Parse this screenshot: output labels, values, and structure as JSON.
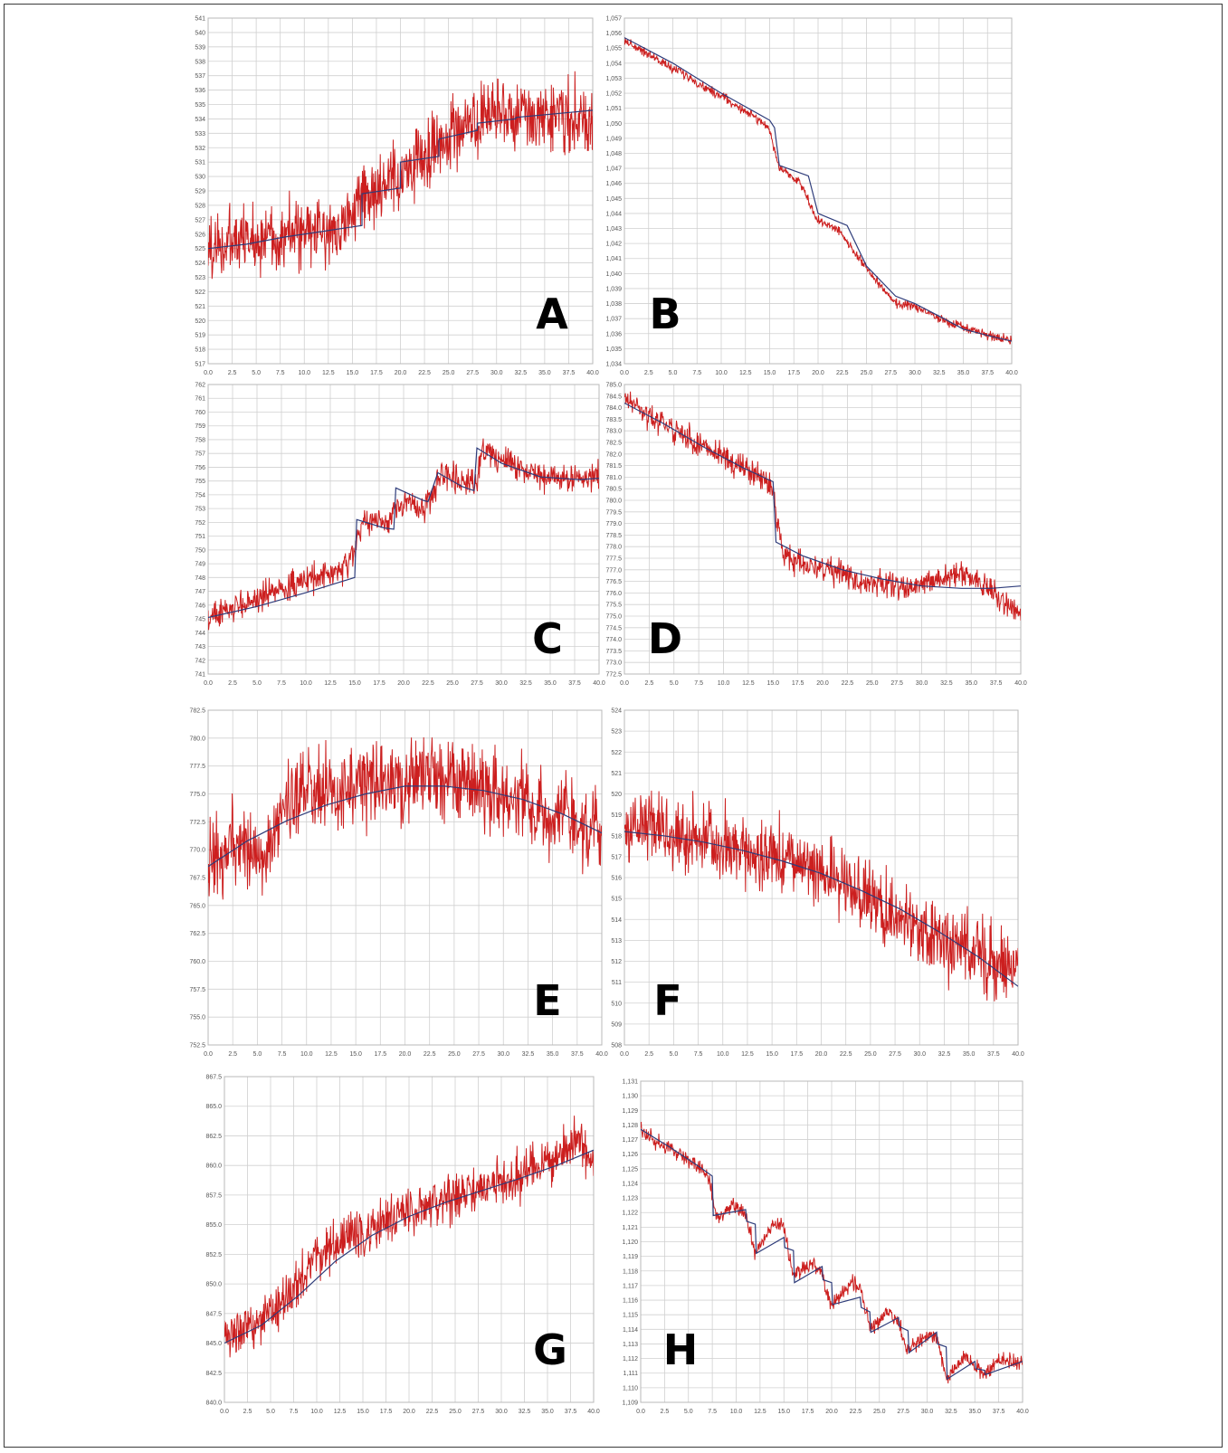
{
  "figure": {
    "panel_labels": [
      "A",
      "B",
      "C",
      "D",
      "E",
      "F",
      "G",
      "H"
    ]
  },
  "colors": {
    "signal": "#cc1f1f",
    "fit": "#2e3c7a",
    "grid": "#d0d0d0",
    "plot_border": "#b8b8b8"
  },
  "chart_data": [
    {
      "id": "A",
      "type": "line",
      "label": "A",
      "grid": true,
      "xlim": [
        0,
        40
      ],
      "ylim": [
        517,
        541
      ],
      "xticks": [
        "0.0",
        "2.5",
        "5.0",
        "7.5",
        "10.0",
        "12.5",
        "15.0",
        "17.5",
        "20.0",
        "22.5",
        "25.0",
        "27.5",
        "30.0",
        "32.5",
        "35.0",
        "37.5",
        "40.0"
      ],
      "yticks": [
        "517",
        "518",
        "519",
        "520",
        "521",
        "522",
        "523",
        "524",
        "525",
        "526",
        "527",
        "528",
        "529",
        "530",
        "531",
        "532",
        "533",
        "534",
        "535",
        "536",
        "537",
        "538",
        "539",
        "540",
        "541"
      ],
      "series": [
        {
          "role": "signal",
          "noise": 3.6,
          "x": [
            0,
            2,
            4,
            6,
            8,
            10,
            12,
            14,
            16,
            18,
            20,
            22,
            24,
            26,
            28,
            30,
            32,
            34,
            36,
            38,
            40
          ],
          "y": [
            525,
            525.3,
            525.6,
            525.8,
            526,
            526,
            526.2,
            526.6,
            528.5,
            529,
            529.8,
            531.2,
            532.3,
            533.4,
            533.5,
            534.2,
            534.2,
            534.3,
            534.6,
            534,
            533.5
          ]
        },
        {
          "role": "fit",
          "x": [
            0,
            4,
            8,
            12,
            16,
            16,
            20,
            20,
            24,
            24,
            28,
            28,
            32,
            32,
            40
          ],
          "y": [
            525,
            525.3,
            525.8,
            526.2,
            526.6,
            528.8,
            529.2,
            531,
            531.4,
            532.6,
            533.2,
            533.7,
            534,
            534.1,
            534.6
          ]
        }
      ]
    },
    {
      "id": "B",
      "type": "line",
      "label": "B",
      "grid": true,
      "xlim": [
        0,
        40
      ],
      "ylim": [
        1.034,
        1.057
      ],
      "xticks": [
        "0.0",
        "2.5",
        "5.0",
        "7.5",
        "10.0",
        "12.5",
        "15.0",
        "17.5",
        "20.0",
        "22.5",
        "25.0",
        "27.5",
        "30.0",
        "32.5",
        "35.0",
        "37.5",
        "40.0"
      ],
      "yticks": [
        "1,034",
        "1,035",
        "1,036",
        "1,037",
        "1,038",
        "1,039",
        "1,040",
        "1,041",
        "1,042",
        "1,043",
        "1,044",
        "1,045",
        "1,046",
        "1,047",
        "1,048",
        "1,049",
        "1,050",
        "1,051",
        "1,052",
        "1,053",
        "1,054",
        "1,055",
        "1,056",
        "1,057"
      ],
      "series": [
        {
          "role": "signal",
          "noise": 0.00045,
          "x": [
            0,
            2,
            4,
            6,
            8,
            10,
            12,
            14,
            15,
            16,
            18,
            20,
            22,
            24,
            26,
            28,
            30,
            32,
            34,
            36,
            38,
            40
          ],
          "y": [
            1.0555,
            1.0548,
            1.054,
            1.0533,
            1.0525,
            1.0518,
            1.051,
            1.0502,
            1.0495,
            1.047,
            1.0462,
            1.0435,
            1.043,
            1.0412,
            1.0395,
            1.038,
            1.0378,
            1.0372,
            1.0366,
            1.0362,
            1.0358,
            1.0355
          ]
        },
        {
          "role": "fit",
          "x": [
            0,
            5,
            10,
            15,
            15.5,
            16,
            19,
            20,
            23,
            25,
            28,
            30,
            33,
            35,
            38,
            40
          ],
          "y": [
            1.0557,
            1.054,
            1.052,
            1.0502,
            1.0497,
            1.0472,
            1.0465,
            1.044,
            1.0432,
            1.0405,
            1.0385,
            1.038,
            1.037,
            1.0363,
            1.0358,
            1.0355
          ]
        }
      ]
    },
    {
      "id": "C",
      "type": "line",
      "label": "C",
      "grid": true,
      "xlim": [
        0,
        40
      ],
      "ylim": [
        741,
        762
      ],
      "xticks": [
        "0.0",
        "2.5",
        "5.0",
        "7.5",
        "10.0",
        "12.5",
        "15.0",
        "17.5",
        "20.0",
        "22.5",
        "25.0",
        "27.5",
        "30.0",
        "32.5",
        "35.0",
        "37.5",
        "40.0"
      ],
      "yticks": [
        "741",
        "742",
        "743",
        "744",
        "745",
        "746",
        "747",
        "748",
        "749",
        "750",
        "751",
        "752",
        "753",
        "754",
        "755",
        "756",
        "757",
        "758",
        "759",
        "760",
        "761",
        "762"
      ],
      "series": [
        {
          "role": "signal",
          "noise": 1.5,
          "x": [
            0,
            2,
            4,
            6,
            8,
            10,
            12,
            14,
            15,
            16,
            18,
            20,
            22,
            24,
            26,
            27.5,
            28,
            30,
            32,
            34,
            36,
            38,
            40
          ],
          "y": [
            745,
            745.6,
            746.2,
            746.8,
            747.3,
            747.8,
            748.2,
            748.5,
            750,
            752.2,
            751.9,
            753.6,
            752.9,
            755.7,
            755,
            755,
            757.3,
            756.6,
            755.9,
            755.4,
            755.2,
            755.3,
            755.2
          ]
        },
        {
          "role": "fit",
          "x": [
            0,
            5,
            10,
            15,
            15.2,
            18,
            19,
            19.2,
            22,
            22.5,
            23.5,
            26,
            27.2,
            27.5,
            30,
            34,
            38,
            40
          ],
          "y": [
            745.1,
            745.9,
            746.9,
            748,
            752.2,
            751.6,
            751.5,
            754.5,
            753.6,
            753.5,
            755.6,
            754.6,
            754.3,
            757.4,
            756.3,
            755.3,
            755.1,
            755.2
          ]
        }
      ]
    },
    {
      "id": "D",
      "type": "line",
      "label": "D",
      "grid": true,
      "xlim": [
        0,
        40
      ],
      "ylim": [
        772.5,
        785.0
      ],
      "xticks": [
        "0.0",
        "2.5",
        "5.0",
        "7.5",
        "10.0",
        "12.5",
        "15.0",
        "17.5",
        "20.0",
        "22.5",
        "25.0",
        "27.5",
        "30.0",
        "32.5",
        "35.0",
        "37.5",
        "40.0"
      ],
      "yticks": [
        "772.5",
        "773.0",
        "773.5",
        "774.0",
        "774.5",
        "775.0",
        "775.5",
        "776.0",
        "776.5",
        "777.0",
        "777.5",
        "778.0",
        "778.5",
        "779.0",
        "779.5",
        "780.0",
        "780.5",
        "781.0",
        "781.5",
        "782.0",
        "782.5",
        "783.0",
        "783.5",
        "784.0",
        "784.5",
        "785.0"
      ],
      "series": [
        {
          "role": "signal",
          "noise": 0.8,
          "x": [
            0,
            2,
            4,
            6,
            8,
            10,
            12,
            14,
            15,
            16,
            18,
            20,
            22,
            24,
            26,
            28,
            30,
            32,
            34,
            36,
            38,
            40
          ],
          "y": [
            784.4,
            783.8,
            783.3,
            782.8,
            782.3,
            781.8,
            781.4,
            781,
            780.4,
            777.6,
            777.3,
            777,
            776.8,
            776.5,
            776.4,
            776.3,
            776.4,
            776.7,
            776.8,
            776.5,
            775.6,
            775.2
          ]
        },
        {
          "role": "fit",
          "x": [
            0,
            4,
            8,
            12,
            15,
            15.3,
            18,
            22,
            26,
            30,
            34,
            37,
            40
          ],
          "y": [
            784.2,
            783.3,
            782.3,
            781.4,
            780.8,
            778.2,
            777.6,
            777,
            776.6,
            776.3,
            776.2,
            776.2,
            776.3
          ]
        }
      ]
    },
    {
      "id": "E",
      "type": "line",
      "label": "E",
      "grid": true,
      "xlim": [
        0,
        40
      ],
      "ylim": [
        752.5,
        782.5
      ],
      "xticks": [
        "0.0",
        "2.5",
        "5.0",
        "7.5",
        "10.0",
        "12.5",
        "15.0",
        "17.5",
        "20.0",
        "22.5",
        "25.0",
        "27.5",
        "30.0",
        "32.5",
        "35.0",
        "37.5",
        "40.0"
      ],
      "yticks": [
        "752.5",
        "755.0",
        "757.5",
        "760.0",
        "762.5",
        "765.0",
        "767.5",
        "770.0",
        "772.5",
        "775.0",
        "777.5",
        "780.0",
        "782.5"
      ],
      "series": [
        {
          "role": "signal",
          "noise": 5.5,
          "x": [
            0,
            2,
            4,
            6,
            8,
            10,
            12,
            14,
            16,
            18,
            20,
            22,
            24,
            26,
            28,
            30,
            32,
            34,
            36,
            38,
            40
          ],
          "y": [
            768,
            770,
            770.5,
            769,
            774.5,
            774.8,
            775,
            775.6,
            776,
            775.6,
            775.7,
            776.2,
            776.6,
            776,
            775.4,
            775,
            774.2,
            773.5,
            773,
            772,
            771.5
          ]
        },
        {
          "role": "fit",
          "x": [
            0,
            4,
            8,
            12,
            16,
            20,
            24,
            28,
            32,
            36,
            40
          ],
          "y": [
            768.5,
            770.8,
            772.6,
            774,
            775,
            775.7,
            775.7,
            775.3,
            774.5,
            773.2,
            771.5
          ]
        }
      ]
    },
    {
      "id": "F",
      "type": "line",
      "label": "F",
      "grid": true,
      "xlim": [
        0,
        40
      ],
      "ylim": [
        508,
        524
      ],
      "xticks": [
        "0.0",
        "2.5",
        "5.0",
        "7.5",
        "10.0",
        "12.5",
        "15.0",
        "17.5",
        "20.0",
        "22.5",
        "25.0",
        "27.5",
        "30.0",
        "32.5",
        "35.0",
        "37.5",
        "40.0"
      ],
      "yticks": [
        "508",
        "509",
        "510",
        "511",
        "512",
        "513",
        "514",
        "515",
        "516",
        "517",
        "518",
        "519",
        "520",
        "521",
        "522",
        "523",
        "524"
      ],
      "series": [
        {
          "role": "signal",
          "noise": 2.6,
          "x": [
            0,
            2,
            4,
            6,
            8,
            10,
            12,
            14,
            16,
            18,
            20,
            22,
            24,
            26,
            28,
            30,
            32,
            34,
            36,
            38,
            40
          ],
          "y": [
            518,
            518.5,
            518.3,
            517.8,
            517.8,
            517.4,
            517.3,
            516.9,
            516.9,
            516.5,
            516.3,
            515.7,
            515.3,
            514.7,
            514,
            513.6,
            513.1,
            512.6,
            512.3,
            512,
            511.6
          ]
        },
        {
          "role": "fit",
          "x": [
            0,
            4,
            8,
            12,
            16,
            20,
            24,
            28,
            32,
            36,
            40
          ],
          "y": [
            518.2,
            518,
            517.7,
            517.3,
            516.8,
            516.2,
            515.4,
            514.5,
            513.4,
            512.2,
            510.8
          ]
        }
      ]
    },
    {
      "id": "G",
      "type": "line",
      "label": "G",
      "grid": true,
      "xlim": [
        0,
        40
      ],
      "ylim": [
        840.0,
        867.5
      ],
      "xticks": [
        "0.0",
        "2.5",
        "5.0",
        "7.5",
        "10.0",
        "12.5",
        "15.0",
        "17.5",
        "20.0",
        "22.5",
        "25.0",
        "27.5",
        "30.0",
        "32.5",
        "35.0",
        "37.5",
        "40.0"
      ],
      "yticks": [
        "840.0",
        "842.5",
        "845.0",
        "847.5",
        "850.0",
        "852.5",
        "855.0",
        "857.5",
        "860.0",
        "862.5",
        "865.0",
        "867.5"
      ],
      "series": [
        {
          "role": "signal",
          "noise": 3.0,
          "x": [
            0,
            2,
            4,
            6,
            8,
            10,
            12,
            14,
            16,
            18,
            20,
            22,
            24,
            26,
            28,
            30,
            32,
            34,
            36,
            38,
            40
          ],
          "y": [
            845.2,
            845.8,
            846.6,
            848,
            850.3,
            852,
            853.3,
            854.2,
            854.8,
            855.4,
            856.1,
            856.6,
            857.1,
            857.6,
            858.1,
            858.6,
            859.1,
            859.7,
            860.3,
            862,
            860.6
          ]
        },
        {
          "role": "fit",
          "x": [
            0,
            4,
            8,
            12,
            16,
            20,
            24,
            28,
            32,
            36,
            40
          ],
          "y": [
            845,
            846.5,
            849,
            851.9,
            854.1,
            855.7,
            856.9,
            857.9,
            858.9,
            860,
            861.3
          ]
        }
      ]
    },
    {
      "id": "H",
      "type": "line",
      "label": "H",
      "grid": true,
      "xlim": [
        0,
        40
      ],
      "ylim": [
        1.109,
        1.131
      ],
      "xticks": [
        "0.0",
        "2.5",
        "5.0",
        "7.5",
        "10.0",
        "12.5",
        "15.0",
        "17.5",
        "20.0",
        "22.5",
        "25.0",
        "27.5",
        "30.0",
        "32.5",
        "35.0",
        "37.5",
        "40.0"
      ],
      "yticks": [
        "1,109",
        "1,110",
        "1,111",
        "1,112",
        "1,113",
        "1,114",
        "1,115",
        "1,116",
        "1,117",
        "1,118",
        "1,119",
        "1,120",
        "1,121",
        "1,122",
        "1,123",
        "1,124",
        "1,125",
        "1,126",
        "1,127",
        "1,128",
        "1,129",
        "1,130",
        "1,131"
      ],
      "series": [
        {
          "role": "signal",
          "noise": 0.0008,
          "x": [
            0,
            2,
            4,
            6,
            7,
            8,
            10,
            11,
            12,
            14,
            15,
            16,
            18,
            19,
            20,
            22,
            23,
            24,
            26,
            27,
            28,
            30,
            31,
            32,
            34,
            36,
            38,
            40
          ],
          "y": [
            1.1276,
            1.1268,
            1.126,
            1.1252,
            1.1245,
            1.1216,
            1.1226,
            1.1218,
            1.1192,
            1.1212,
            1.121,
            1.1176,
            1.1186,
            1.1178,
            1.1156,
            1.1172,
            1.117,
            1.114,
            1.1152,
            1.1145,
            1.1125,
            1.1136,
            1.1135,
            1.1106,
            1.1122,
            1.1108,
            1.112,
            1.1116
          ]
        },
        {
          "role": "fit",
          "x": [
            0,
            3,
            6,
            7.5,
            7.6,
            11,
            11.1,
            12,
            12.1,
            15,
            15.1,
            16,
            16.1,
            19,
            19.1,
            20,
            20.1,
            23,
            23.1,
            24,
            24.1,
            27,
            27.1,
            28,
            28.1,
            31,
            31.1,
            32,
            32.1,
            35,
            35.1,
            36,
            36.1,
            40
          ],
          "y": [
            1.1277,
            1.1265,
            1.1252,
            1.1245,
            1.1218,
            1.1222,
            1.1214,
            1.1212,
            1.1192,
            1.1203,
            1.1196,
            1.1194,
            1.1172,
            1.1183,
            1.1174,
            1.1172,
            1.1157,
            1.1162,
            1.1155,
            1.1152,
            1.1138,
            1.1148,
            1.1142,
            1.1139,
            1.1124,
            1.1138,
            1.113,
            1.1128,
            1.1106,
            1.1118,
            1.1113,
            1.1112,
            1.1109,
            1.1118
          ]
        }
      ]
    }
  ]
}
